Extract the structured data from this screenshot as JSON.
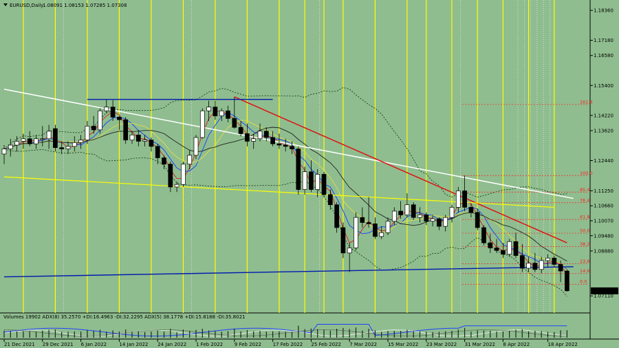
{
  "header": {
    "symbol": "EURUSD,Daily",
    "ohlc": "1.08091 1.08153 1.07285 1.07308"
  },
  "indicator_header": "Volumes 19902  ADX(8) 35.2570 +DI:16.4963 -DI:32.2295  ADX(5) 38.1778  +DI:15.8188  -DI:35.8021",
  "colors": {
    "background": "#8fbd8f",
    "bull": "#ffffff",
    "bear": "#000000",
    "vline": "#ffff00",
    "white_trend": "#ffffff",
    "red_trend": "#e01010",
    "yellow_trend": "#ffff00",
    "blue_line": "#0018b0",
    "ma_red": "#d02020",
    "ma_blue": "#1040ff",
    "ma_yellow": "#e0e040",
    "ma_black": "#202020",
    "bollinger": "#103010",
    "fibo": "#ff2020",
    "price_tag": "#00e5ff"
  },
  "chart_data": {
    "type": "candlestick",
    "symbol": "EURUSD",
    "timeframe": "Daily",
    "ylim": [
      1.0652,
      1.1855
    ],
    "price_axis_labels": [
      "1.18360",
      "1.17180",
      "1.16580",
      "1.15400",
      "1.14220",
      "1.13620",
      "1.12440",
      "1.11250",
      "1.10660",
      "1.10070",
      "1.09480",
      "1.08880",
      "1.07110"
    ],
    "current_price": "1.07308",
    "date_labels": [
      "21 Dec 2021",
      "29 Dec 2021",
      "6 Jan 2022",
      "14 Jan 2022",
      "24 Jan 2022",
      "1 Feb 2022",
      "9 Feb 2022",
      "17 Feb 2022",
      "25 Feb 2022",
      "7 Mar 2022",
      "15 Mar 2022",
      "23 Mar 2022",
      "31 Mar 2022",
      "8 Apr 2022",
      "18 Apr 2022"
    ],
    "date_label_bar_index": [
      0,
      6,
      12,
      18,
      24,
      30,
      36,
      42,
      48,
      54,
      60,
      66,
      72,
      78,
      85
    ],
    "bars": [
      {
        "o": 1.127,
        "h": 1.1305,
        "l": 1.123,
        "c": 1.129
      },
      {
        "o": 1.129,
        "h": 1.133,
        "l": 1.126,
        "c": 1.1305
      },
      {
        "o": 1.1305,
        "h": 1.134,
        "l": 1.128,
        "c": 1.132
      },
      {
        "o": 1.132,
        "h": 1.135,
        "l": 1.129,
        "c": 1.133
      },
      {
        "o": 1.133,
        "h": 1.136,
        "l": 1.13,
        "c": 1.131
      },
      {
        "o": 1.131,
        "h": 1.1345,
        "l": 1.129,
        "c": 1.133
      },
      {
        "o": 1.133,
        "h": 1.138,
        "l": 1.13,
        "c": 1.133
      },
      {
        "o": 1.133,
        "h": 1.1385,
        "l": 1.129,
        "c": 1.136
      },
      {
        "o": 1.137,
        "h": 1.1385,
        "l": 1.128,
        "c": 1.1295
      },
      {
        "o": 1.1295,
        "h": 1.132,
        "l": 1.127,
        "c": 1.129
      },
      {
        "o": 1.129,
        "h": 1.132,
        "l": 1.127,
        "c": 1.13
      },
      {
        "o": 1.13,
        "h": 1.134,
        "l": 1.128,
        "c": 1.1315
      },
      {
        "o": 1.1315,
        "h": 1.1345,
        "l": 1.129,
        "c": 1.1325
      },
      {
        "o": 1.1325,
        "h": 1.14,
        "l": 1.131,
        "c": 1.138
      },
      {
        "o": 1.138,
        "h": 1.142,
        "l": 1.135,
        "c": 1.1365
      },
      {
        "o": 1.1365,
        "h": 1.145,
        "l": 1.135,
        "c": 1.144
      },
      {
        "o": 1.144,
        "h": 1.1485,
        "l": 1.143,
        "c": 1.1455
      },
      {
        "o": 1.1455,
        "h": 1.1482,
        "l": 1.14,
        "c": 1.1415
      },
      {
        "o": 1.1415,
        "h": 1.142,
        "l": 1.1365,
        "c": 1.1405
      },
      {
        "o": 1.1405,
        "h": 1.1415,
        "l": 1.131,
        "c": 1.1325
      },
      {
        "o": 1.1325,
        "h": 1.136,
        "l": 1.131,
        "c": 1.1345
      },
      {
        "o": 1.1345,
        "h": 1.1365,
        "l": 1.13,
        "c": 1.132
      },
      {
        "o": 1.132,
        "h": 1.1345,
        "l": 1.13,
        "c": 1.1325
      },
      {
        "o": 1.1325,
        "h": 1.1335,
        "l": 1.128,
        "c": 1.13
      },
      {
        "o": 1.13,
        "h": 1.131,
        "l": 1.123,
        "c": 1.1255
      },
      {
        "o": 1.1255,
        "h": 1.1265,
        "l": 1.121,
        "c": 1.123
      },
      {
        "o": 1.123,
        "h": 1.124,
        "l": 1.112,
        "c": 1.114
      },
      {
        "o": 1.114,
        "h": 1.116,
        "l": 1.112,
        "c": 1.115
      },
      {
        "o": 1.115,
        "h": 1.124,
        "l": 1.114,
        "c": 1.123
      },
      {
        "o": 1.123,
        "h": 1.1285,
        "l": 1.121,
        "c": 1.1265
      },
      {
        "o": 1.1265,
        "h": 1.1345,
        "l": 1.125,
        "c": 1.1335
      },
      {
        "o": 1.1335,
        "h": 1.145,
        "l": 1.133,
        "c": 1.144
      },
      {
        "o": 1.144,
        "h": 1.148,
        "l": 1.14,
        "c": 1.1455
      },
      {
        "o": 1.1455,
        "h": 1.148,
        "l": 1.1405,
        "c": 1.142
      },
      {
        "o": 1.142,
        "h": 1.145,
        "l": 1.14,
        "c": 1.144
      },
      {
        "o": 1.144,
        "h": 1.146,
        "l": 1.1395,
        "c": 1.141
      },
      {
        "o": 1.141,
        "h": 1.1495,
        "l": 1.137,
        "c": 1.1375
      },
      {
        "o": 1.1375,
        "h": 1.14,
        "l": 1.134,
        "c": 1.135
      },
      {
        "o": 1.135,
        "h": 1.139,
        "l": 1.13,
        "c": 1.132
      },
      {
        "o": 1.132,
        "h": 1.135,
        "l": 1.129,
        "c": 1.133
      },
      {
        "o": 1.133,
        "h": 1.139,
        "l": 1.132,
        "c": 1.136
      },
      {
        "o": 1.136,
        "h": 1.1375,
        "l": 1.132,
        "c": 1.1335
      },
      {
        "o": 1.1335,
        "h": 1.136,
        "l": 1.13,
        "c": 1.131
      },
      {
        "o": 1.131,
        "h": 1.135,
        "l": 1.129,
        "c": 1.1305
      },
      {
        "o": 1.1305,
        "h": 1.133,
        "l": 1.128,
        "c": 1.13
      },
      {
        "o": 1.13,
        "h": 1.132,
        "l": 1.127,
        "c": 1.129
      },
      {
        "o": 1.129,
        "h": 1.13,
        "l": 1.111,
        "c": 1.113
      },
      {
        "o": 1.113,
        "h": 1.122,
        "l": 1.111,
        "c": 1.12
      },
      {
        "o": 1.12,
        "h": 1.1245,
        "l": 1.112,
        "c": 1.113
      },
      {
        "o": 1.113,
        "h": 1.121,
        "l": 1.11,
        "c": 1.119
      },
      {
        "o": 1.119,
        "h": 1.12,
        "l": 1.11,
        "c": 1.111
      },
      {
        "o": 1.111,
        "h": 1.113,
        "l": 1.105,
        "c": 1.107
      },
      {
        "o": 1.107,
        "h": 1.108,
        "l": 1.096,
        "c": 1.098
      },
      {
        "o": 1.098,
        "h": 1.1,
        "l": 1.086,
        "c": 1.088
      },
      {
        "o": 1.088,
        "h": 1.092,
        "l": 1.0805,
        "c": 1.09
      },
      {
        "o": 1.09,
        "h": 1.104,
        "l": 1.089,
        "c": 1.102
      },
      {
        "o": 1.102,
        "h": 1.106,
        "l": 1.098,
        "c": 1.1
      },
      {
        "o": 1.1,
        "h": 1.11,
        "l": 1.098,
        "c": 1.0995
      },
      {
        "o": 1.0995,
        "h": 1.102,
        "l": 1.0935,
        "c": 1.0945
      },
      {
        "o": 1.0945,
        "h": 1.0985,
        "l": 1.0935,
        "c": 1.096
      },
      {
        "o": 1.096,
        "h": 1.102,
        "l": 1.095,
        "c": 1.1005
      },
      {
        "o": 1.1005,
        "h": 1.106,
        "l": 1.099,
        "c": 1.1045
      },
      {
        "o": 1.1045,
        "h": 1.1085,
        "l": 1.1015,
        "c": 1.103
      },
      {
        "o": 1.103,
        "h": 1.1115,
        "l": 1.102,
        "c": 1.107
      },
      {
        "o": 1.107,
        "h": 1.108,
        "l": 1.101,
        "c": 1.102
      },
      {
        "o": 1.102,
        "h": 1.106,
        "l": 1.1,
        "c": 1.103
      },
      {
        "o": 1.103,
        "h": 1.104,
        "l": 1.099,
        "c": 1.1005
      },
      {
        "o": 1.1005,
        "h": 1.103,
        "l": 1.0985,
        "c": 1.1015
      },
      {
        "o": 1.1015,
        "h": 1.102,
        "l": 1.097,
        "c": 1.0985
      },
      {
        "o": 1.0985,
        "h": 1.103,
        "l": 1.0965,
        "c": 1.102
      },
      {
        "o": 1.102,
        "h": 1.107,
        "l": 1.1,
        "c": 1.106
      },
      {
        "o": 1.106,
        "h": 1.114,
        "l": 1.104,
        "c": 1.1125
      },
      {
        "o": 1.1125,
        "h": 1.1185,
        "l": 1.1045,
        "c": 1.106
      },
      {
        "o": 1.106,
        "h": 1.1075,
        "l": 1.102,
        "c": 1.104
      },
      {
        "o": 1.104,
        "h": 1.1055,
        "l": 1.097,
        "c": 1.098
      },
      {
        "o": 1.098,
        "h": 1.099,
        "l": 1.091,
        "c": 1.092
      },
      {
        "o": 1.092,
        "h": 1.0955,
        "l": 1.088,
        "c": 1.09
      },
      {
        "o": 1.09,
        "h": 1.0935,
        "l": 1.088,
        "c": 1.089
      },
      {
        "o": 1.089,
        "h": 1.092,
        "l": 1.086,
        "c": 1.0875
      },
      {
        "o": 1.0875,
        "h": 1.0935,
        "l": 1.0865,
        "c": 1.0925
      },
      {
        "o": 1.0925,
        "h": 1.096,
        "l": 1.086,
        "c": 1.087
      },
      {
        "o": 1.087,
        "h": 1.0915,
        "l": 1.0805,
        "c": 1.082
      },
      {
        "o": 1.082,
        "h": 1.0865,
        "l": 1.0805,
        "c": 1.084
      },
      {
        "o": 1.084,
        "h": 1.088,
        "l": 1.0805,
        "c": 1.0815
      },
      {
        "o": 1.0815,
        "h": 1.0865,
        "l": 1.08,
        "c": 1.085
      },
      {
        "o": 1.085,
        "h": 1.0875,
        "l": 1.0825,
        "c": 1.086
      },
      {
        "o": 1.086,
        "h": 1.087,
        "l": 1.0825,
        "c": 1.0835
      },
      {
        "o": 1.0835,
        "h": 1.085,
        "l": 1.0765,
        "c": 1.0809
      },
      {
        "o": 1.0809,
        "h": 1.0815,
        "l": 1.0728,
        "c": 1.0731
      }
    ],
    "fibonacci": {
      "levels": [
        "161.8",
        "100.0",
        "85.4",
        "76.4",
        "61.8",
        "50.0",
        "38.2",
        "23.6",
        "14.6",
        "0.0"
      ],
      "prices": [
        1.1465,
        1.1185,
        1.112,
        1.1078,
        1.1012,
        1.0958,
        1.0905,
        1.0838,
        1.0799,
        1.0757
      ]
    },
    "trendlines": [
      {
        "name": "white-downtrend",
        "from_bar": 0,
        "from_price": 1.1525,
        "to_bar": 89,
        "to_price": 1.1095
      },
      {
        "name": "red-downtrend",
        "from_bar": 36,
        "from_price": 1.1495,
        "to_bar": 88,
        "to_price": 1.092
      },
      {
        "name": "yellow-support",
        "from_bar": 0,
        "from_price": 1.118,
        "to_bar": 86,
        "to_price": 1.106
      },
      {
        "name": "blue-bottom",
        "from_bar": 0,
        "from_price": 1.0786,
        "to_bar": 89,
        "to_price": 1.0826
      },
      {
        "name": "blue-top",
        "from_bar": 13,
        "from_price": 1.1485,
        "to_bar": 42,
        "to_price": 1.1485
      }
    ],
    "vertical_yellow_bars": [
      3,
      8,
      13,
      18,
      23,
      28,
      33,
      38,
      43,
      47,
      50,
      53,
      58,
      63,
      66,
      70,
      74,
      78,
      82,
      86
    ],
    "vertical_dotted_bars": [
      9,
      29,
      49,
      71,
      80,
      81,
      82,
      83,
      84,
      85
    ]
  }
}
